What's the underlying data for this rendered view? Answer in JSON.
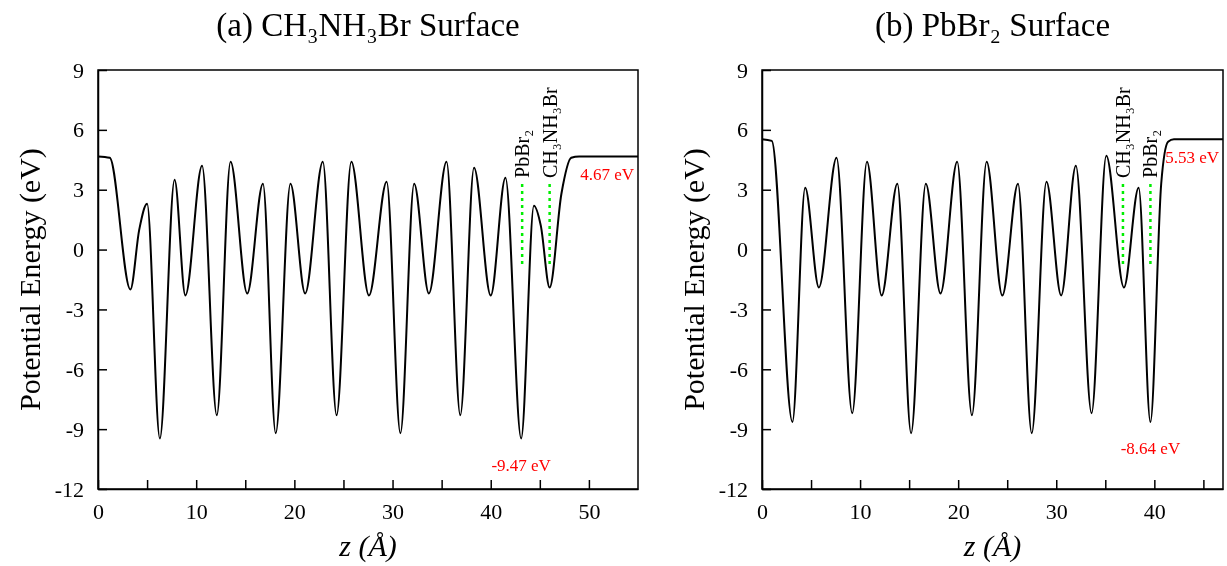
{
  "chart_data": [
    {
      "type": "line",
      "title": "(a) CH₃NH₃Br Surface",
      "xlabel": "z (Å)",
      "ylabel": "Potential Energy (eV)",
      "xlim": [
        0,
        55
      ],
      "xticks": [
        0,
        {
          "value": 5,
          "label": null
        },
        10,
        {
          "value": 15,
          "label": null
        },
        20,
        {
          "value": 25,
          "label": null
        },
        30,
        {
          "value": 35,
          "label": null
        },
        40,
        {
          "value": 45,
          "label": null
        },
        50
      ],
      "ylim": [
        -12,
        9
      ],
      "yticks": [
        -12,
        -9,
        -6,
        -3,
        0,
        3,
        6,
        9
      ],
      "grid": false,
      "marker": "none",
      "line_style": "solid",
      "series": [
        {
          "color": "#000000",
          "x": [
            0,
            1.2,
            3.3,
            4.2,
            5.0,
            6.3,
            7.8,
            8.9,
            10.6,
            12.1,
            13.5,
            15.2,
            16.8,
            18.1,
            19.6,
            21.1,
            22.9,
            24.3,
            25.8,
            27.6,
            29.4,
            30.8,
            32.2,
            33.7,
            35.5,
            36.9,
            38.3,
            40.0,
            41.5,
            43.1,
            44.4,
            45.1,
            46.0,
            47.2,
            48.2,
            49.0,
            55
          ],
          "values": [
            4.67,
            4.6,
            -2.0,
            1.0,
            2.3,
            -9.47,
            3.5,
            -2.3,
            4.2,
            -8.3,
            4.4,
            -2.2,
            3.3,
            -9.2,
            3.3,
            -2.2,
            4.4,
            -8.3,
            4.4,
            -2.3,
            3.4,
            -9.2,
            3.3,
            -2.2,
            4.4,
            -8.3,
            4.1,
            -2.3,
            3.6,
            -9.47,
            2.2,
            1.2,
            -1.9,
            2.8,
            4.6,
            4.67,
            4.67
          ]
        }
      ],
      "ref_lines": [
        {
          "axis": "x",
          "value": 43.2,
          "label": "PbBr₂",
          "color": "#00ee00",
          "line_style": "dotted"
        },
        {
          "axis": "x",
          "value": 46.0,
          "label": "CH₃NH₃Br",
          "color": "#00ee00",
          "line_style": "dotted"
        }
      ],
      "annotations": [
        {
          "text": "4.67 eV",
          "x": 55,
          "y": 4.67
        },
        {
          "text": "-9.47 eV",
          "x": 43.1,
          "y": -9.47
        }
      ]
    },
    {
      "type": "line",
      "title": "(b) PbBr₂ Surface",
      "xlabel": "z (Å)",
      "ylabel": "Potential Energy (eV)",
      "xlim": [
        0,
        47
      ],
      "xticks": [
        0,
        {
          "value": 5,
          "label": null
        },
        10,
        {
          "value": 15,
          "label": null
        },
        20,
        {
          "value": 25,
          "label": null
        },
        30,
        {
          "value": 35,
          "label": null
        },
        40,
        {
          "value": 45,
          "label": null
        }
      ],
      "ylim": [
        -12,
        9
      ],
      "yticks": [
        -12,
        -9,
        -6,
        -3,
        0,
        3,
        6,
        9
      ],
      "grid": false,
      "marker": "none",
      "line_style": "solid",
      "series": [
        {
          "color": "#000000",
          "x": [
            0,
            1.0,
            3.1,
            4.4,
            5.8,
            7.6,
            9.2,
            10.7,
            12.2,
            13.8,
            15.2,
            16.7,
            18.2,
            19.9,
            21.4,
            22.9,
            24.5,
            26.1,
            27.5,
            29.0,
            30.5,
            32.0,
            33.6,
            35.1,
            36.9,
            38.4,
            39.6,
            40.7,
            41.4,
            42.0,
            47
          ],
          "values": [
            5.53,
            5.45,
            -8.64,
            3.1,
            -1.9,
            4.6,
            -8.2,
            4.4,
            -2.3,
            3.3,
            -9.2,
            3.3,
            -2.2,
            4.4,
            -8.3,
            4.4,
            -2.3,
            3.3,
            -9.2,
            3.4,
            -2.3,
            4.2,
            -8.2,
            4.7,
            -1.9,
            3.1,
            -8.64,
            3.3,
            5.4,
            5.53,
            5.53
          ]
        }
      ],
      "ref_lines": [
        {
          "axis": "x",
          "value": 36.8,
          "label": "CH₃NH₃Br",
          "color": "#00ee00",
          "line_style": "dotted"
        },
        {
          "axis": "x",
          "value": 39.6,
          "label": "PbBr₂",
          "color": "#00ee00",
          "line_style": "dotted"
        }
      ],
      "annotations": [
        {
          "text": "5.53 eV",
          "x": 47,
          "y": 5.53
        },
        {
          "text": "-8.64 eV",
          "x": 39.6,
          "y": -8.64
        }
      ]
    }
  ]
}
